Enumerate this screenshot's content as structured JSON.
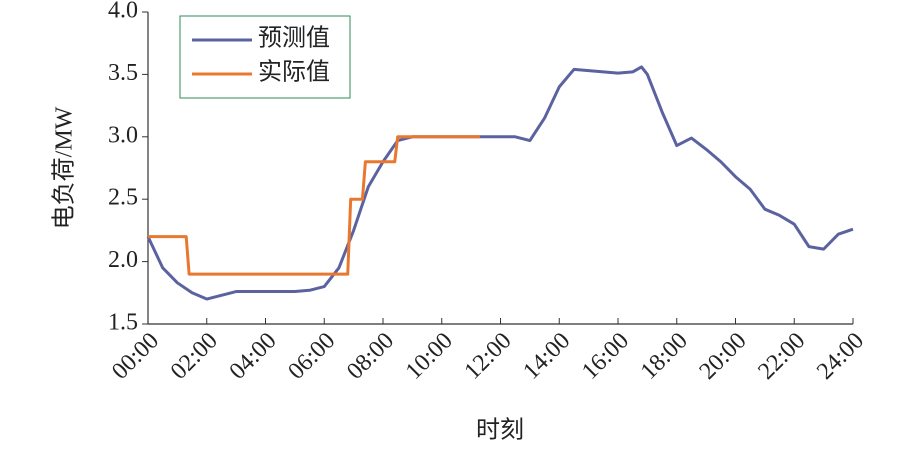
{
  "chart_data": {
    "type": "line",
    "x_label": "时刻",
    "y_label": "电负荷/MW",
    "xlim": [
      0,
      24
    ],
    "xticks": [
      {
        "value": 0,
        "label": "00:00"
      },
      {
        "value": 2,
        "label": "02:00"
      },
      {
        "value": 4,
        "label": "04:00"
      },
      {
        "value": 6,
        "label": "06:00"
      },
      {
        "value": 8,
        "label": "08:00"
      },
      {
        "value": 10,
        "label": "10:00"
      },
      {
        "value": 12,
        "label": "12:00"
      },
      {
        "value": 14,
        "label": "14:00"
      },
      {
        "value": 16,
        "label": "16:00"
      },
      {
        "value": 18,
        "label": "18:00"
      },
      {
        "value": 20,
        "label": "20:00"
      },
      {
        "value": 22,
        "label": "22:00"
      },
      {
        "value": 24,
        "label": "24:00"
      }
    ],
    "ylim": [
      1.5,
      4.0
    ],
    "yticks": [
      {
        "value": 1.5,
        "label": "1.5"
      },
      {
        "value": 2,
        "label": "2.0"
      },
      {
        "value": 2.5,
        "label": "2.5"
      },
      {
        "value": 3,
        "label": "3.0"
      },
      {
        "value": 3.5,
        "label": "3.5"
      },
      {
        "value": 4,
        "label": "4.0"
      }
    ],
    "grid": false,
    "legend": "upper left",
    "series": [
      {
        "name": "预测值",
        "color": "#5b62a0",
        "x": [
          0,
          0.5,
          1,
          1.5,
          2,
          2.5,
          3,
          3.5,
          4,
          4.5,
          5,
          5.5,
          6,
          6.5,
          7,
          7.5,
          8,
          8.5,
          9,
          9.5,
          10,
          10.5,
          11,
          11.5,
          12,
          12.5,
          13,
          13.5,
          14,
          14.5,
          15,
          15.5,
          16,
          16.5,
          16.8,
          17,
          17.5,
          18,
          18.5,
          19,
          19.5,
          20,
          20.5,
          21,
          21.5,
          22,
          22.5,
          23,
          23.5,
          24
        ],
        "values": [
          2.2,
          1.95,
          1.83,
          1.75,
          1.7,
          1.73,
          1.76,
          1.76,
          1.76,
          1.76,
          1.76,
          1.77,
          1.8,
          1.95,
          2.25,
          2.6,
          2.8,
          2.97,
          3.0,
          3.0,
          3.0,
          3.0,
          3.0,
          3.0,
          3.0,
          3.0,
          2.97,
          3.15,
          3.4,
          3.54,
          3.53,
          3.52,
          3.51,
          3.52,
          3.56,
          3.5,
          3.2,
          2.93,
          2.99,
          2.9,
          2.8,
          2.68,
          2.58,
          2.42,
          2.37,
          2.3,
          2.12,
          2.1,
          2.22,
          2.26
        ]
      },
      {
        "name": "实际值",
        "color": "#e8782f",
        "x": [
          0,
          1.3,
          1.4,
          6.8,
          6.9,
          7.3,
          7.4,
          8.4,
          8.5,
          11.3
        ],
        "values": [
          2.2,
          2.2,
          1.9,
          1.9,
          2.5,
          2.5,
          2.8,
          2.8,
          3.0,
          3.0
        ]
      }
    ]
  }
}
